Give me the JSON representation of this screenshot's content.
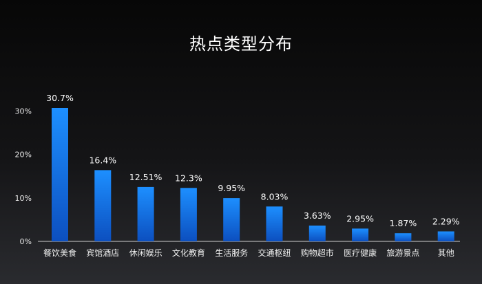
{
  "chart_data": {
    "type": "bar",
    "title": "热点类型分布",
    "categories": [
      "餐饮美食",
      "宾馆酒店",
      "休闲娱乐",
      "文化教育",
      "生活服务",
      "交通枢纽",
      "购物超市",
      "医疗健康",
      "旅游景点",
      "其他"
    ],
    "values": [
      30.7,
      16.4,
      12.51,
      12.3,
      9.95,
      8.03,
      3.63,
      2.95,
      1.87,
      2.29
    ],
    "data_labels": [
      "30.7%",
      "16.4%",
      "12.51%",
      "12.3%",
      "9.95%",
      "8.03%",
      "3.63%",
      "2.95%",
      "1.87%",
      "2.29%"
    ],
    "yticks": [
      0,
      10,
      20,
      30
    ],
    "ytick_labels": [
      "0%",
      "10%",
      "20%",
      "30%"
    ],
    "ylim": [
      0,
      30.7
    ],
    "grid": false,
    "legend": "none",
    "colors": {
      "bar_top": "#1d8fff",
      "bar_bottom": "#0c4fbf",
      "axis": "#cfcfcf"
    }
  }
}
